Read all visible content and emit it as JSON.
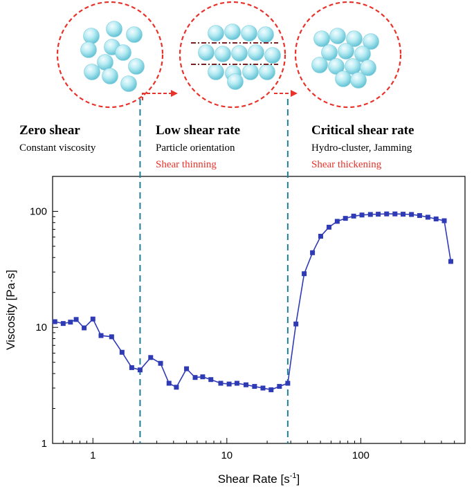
{
  "regions": [
    {
      "title": "Zero shear",
      "subtitle": "Constant viscosity",
      "effect": ""
    },
    {
      "title": "Low shear rate",
      "subtitle": "Particle orientation",
      "effect": "Shear thinning"
    },
    {
      "title": "Critical shear rate",
      "subtitle": "Hydro-cluster, Jamming",
      "effect": "Shear thickening"
    }
  ],
  "colors": {
    "series": "#2f3bb5",
    "region_lines": "#1d7e9a",
    "circle_border": "#e8322a",
    "effect_text": "#e8322a",
    "particle": "#8fd9e6"
  },
  "chart_data": {
    "type": "line",
    "xlabel": "Shear Rate [s",
    "xlabel_sup": "-1",
    "xlabel_end": "]",
    "ylabel": "Viscosity [Pa·s]",
    "xscale": "log",
    "yscale": "log",
    "xlim": [
      0.5,
      600
    ],
    "ylim": [
      1,
      200
    ],
    "xticks": [
      1,
      10,
      100
    ],
    "xtick_labels": [
      "1",
      "10",
      "100"
    ],
    "yticks": [
      1,
      10,
      100
    ],
    "ytick_labels": [
      "1",
      "10",
      "100"
    ],
    "grid": false,
    "region_boundaries_x": [
      2.25,
      28.5
    ],
    "series": [
      {
        "marker": "square",
        "x": [
          0.52,
          0.6,
          0.68,
          0.75,
          0.86,
          1.0,
          1.15,
          1.38,
          1.65,
          1.95,
          2.25,
          2.7,
          3.2,
          3.7,
          4.2,
          5.0,
          5.8,
          6.6,
          7.6,
          9.0,
          10.4,
          11.9,
          13.9,
          16.1,
          18.6,
          21.4,
          24.7,
          28.5,
          32.8,
          37.8,
          43.6,
          50.2,
          57.9,
          66.7,
          76.8,
          88.5,
          102,
          118,
          135,
          156,
          180,
          207,
          239,
          275,
          317,
          365,
          420,
          470
        ],
        "y": [
          11.2,
          10.8,
          11.1,
          11.7,
          9.9,
          11.8,
          8.5,
          8.3,
          6.1,
          4.5,
          4.3,
          5.5,
          4.9,
          3.3,
          3.05,
          4.4,
          3.7,
          3.75,
          3.55,
          3.3,
          3.25,
          3.3,
          3.2,
          3.1,
          3.0,
          2.9,
          3.1,
          3.3,
          10.7,
          29,
          44,
          61,
          73,
          82,
          87,
          91,
          93,
          94,
          94.5,
          95,
          95,
          94.5,
          94,
          92,
          89,
          86,
          83,
          37
        ]
      }
    ]
  }
}
